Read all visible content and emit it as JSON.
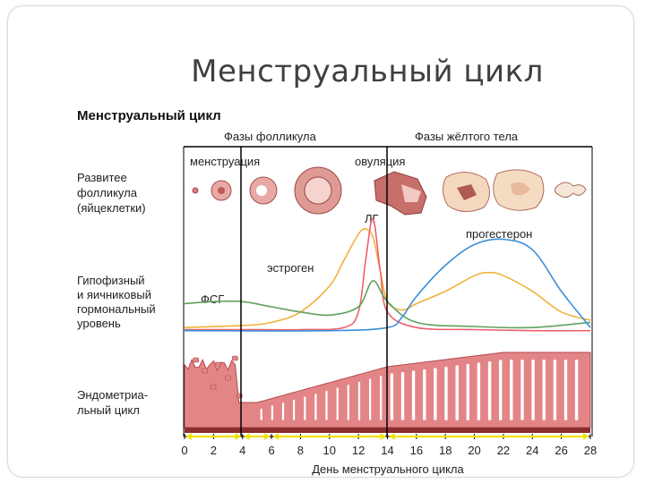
{
  "slide": {
    "title": "Менструальный цикл"
  },
  "figure": {
    "heading": "Менструальный цикл",
    "phase_follicle": "Фазы фолликула",
    "phase_luteal": "Фазы жёлтого тела",
    "event_menstruation": "менструация",
    "event_ovulation": "овуляция",
    "row_follicle_line1": "Развитее",
    "row_follicle_line2": "фолликула",
    "row_follicle_line3": "(яйцеклетки)",
    "row_hormone_line1": "Гипофизный",
    "row_hormone_line2": "и яичниковый",
    "row_hormone_line3": "гормональный",
    "row_hormone_line4": "уровень",
    "row_endo_line1": "Эндометриа-",
    "row_endo_line2": "льный цикл",
    "label_lh": "ЛГ",
    "label_progesterone": "прогестерон",
    "label_estrogen": "эстроген",
    "label_fsh": "ФСГ",
    "x_axis_label": "День менструального цикла"
  },
  "chart_data": {
    "type": "line",
    "x_ticks": [
      0,
      2,
      4,
      6,
      8,
      10,
      12,
      14,
      16,
      18,
      20,
      22,
      24,
      26,
      28
    ],
    "xlabel": "День менструального цикла",
    "xlim": [
      0,
      28
    ],
    "markers": {
      "menstruation_end_day": 4,
      "ovulation_day": 14
    },
    "series": [
      {
        "name": "эстроген",
        "color": "#f2b13a",
        "x": [
          0,
          4,
          6,
          8,
          10,
          11,
          12,
          12.5,
          13,
          13.5,
          14,
          15,
          16,
          18,
          20,
          21,
          22,
          24,
          26,
          28
        ],
        "y": [
          0.05,
          0.07,
          0.1,
          0.2,
          0.45,
          0.7,
          0.95,
          1.0,
          0.92,
          0.6,
          0.3,
          0.22,
          0.28,
          0.4,
          0.55,
          0.58,
          0.55,
          0.4,
          0.2,
          0.12
        ]
      },
      {
        "name": "ЛГ",
        "color": "#ee5f6c",
        "x": [
          0,
          4,
          8,
          11,
          12,
          12.5,
          13,
          13.5,
          14,
          16,
          20,
          24,
          28
        ],
        "y": [
          0.03,
          0.03,
          0.03,
          0.05,
          0.2,
          0.7,
          1.1,
          0.6,
          0.2,
          0.05,
          0.03,
          0.02,
          0.02
        ]
      },
      {
        "name": "ФСГ",
        "color": "#5fa15f",
        "x": [
          0,
          2,
          4,
          6,
          8,
          10,
          12,
          13,
          14,
          16,
          20,
          24,
          28
        ],
        "y": [
          0.28,
          0.3,
          0.3,
          0.25,
          0.2,
          0.17,
          0.25,
          0.5,
          0.3,
          0.1,
          0.06,
          0.05,
          0.1
        ]
      },
      {
        "name": "прогестерон",
        "color": "#3a8fd9",
        "x": [
          0,
          10,
          14,
          15,
          16,
          18,
          20,
          22,
          24,
          26,
          28
        ],
        "y": [
          0.02,
          0.02,
          0.05,
          0.15,
          0.35,
          0.65,
          0.85,
          0.9,
          0.8,
          0.4,
          0.05
        ]
      }
    ]
  },
  "colors": {
    "phase_line": "#000000",
    "endometrium_fill": "#e38587",
    "endometrium_stroke": "#b24a4d",
    "arrow_yellow": "#f0e200"
  }
}
